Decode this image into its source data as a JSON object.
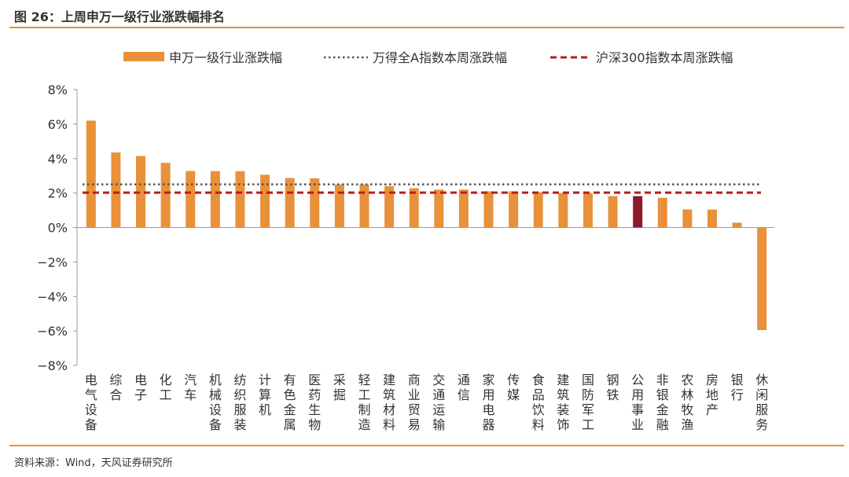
{
  "header": {
    "title": "图 26：上周申万一级行业涨跌幅排名"
  },
  "footer": {
    "source": "资料来源：Wind，天风证券研究所"
  },
  "colors": {
    "bar": "#E8913A",
    "highlight_bar": "#8B1A2C",
    "wind_line": "#555555",
    "hs300_line": "#B81D1D",
    "rule": "#E8913A",
    "axis": "#999999"
  },
  "chart_data": {
    "type": "bar",
    "title": "上周申万一级行业涨跌幅排名",
    "xlabel": "",
    "ylabel": "",
    "ylim": [
      -8,
      8
    ],
    "yticks": [
      8,
      6,
      4,
      2,
      0,
      -2,
      -4,
      -6,
      -8
    ],
    "ytick_labels": [
      "8%",
      "6%",
      "4%",
      "2%",
      "0%",
      "−2%",
      "−4%",
      "−6%",
      "−8%"
    ],
    "unit": "%",
    "categories": [
      "电气设备",
      "综合",
      "电子",
      "化工",
      "汽车",
      "机械设备",
      "纺织服装",
      "计算机",
      "有色金属",
      "医药生物",
      "采掘",
      "轻工制造",
      "建筑材料",
      "商业贸易",
      "交通运输",
      "通信",
      "家用电器",
      "传媒",
      "食品饮料",
      "建筑装饰",
      "国防军工",
      "钢铁",
      "公用事业",
      "非银金融",
      "农林牧渔",
      "房地产",
      "银行",
      "休闲服务"
    ],
    "series": [
      {
        "name": "申万一级行业涨跌幅",
        "values": [
          6.2,
          4.35,
          4.15,
          3.75,
          3.28,
          3.27,
          3.26,
          3.06,
          2.87,
          2.85,
          2.5,
          2.5,
          2.4,
          2.28,
          2.2,
          2.2,
          2.1,
          2.1,
          2.05,
          2.0,
          2.0,
          1.82,
          1.82,
          1.72,
          1.05,
          1.04,
          0.28,
          -5.95
        ]
      }
    ],
    "highlight_category": "公用事业",
    "reference_lines": [
      {
        "name": "万得全A指数本周涨跌幅",
        "value": 2.5,
        "style": "dotted"
      },
      {
        "name": "沪深300指数本周涨跌幅",
        "value": 2.02,
        "style": "dashed"
      }
    ],
    "legend_position": "top",
    "grid": false
  }
}
